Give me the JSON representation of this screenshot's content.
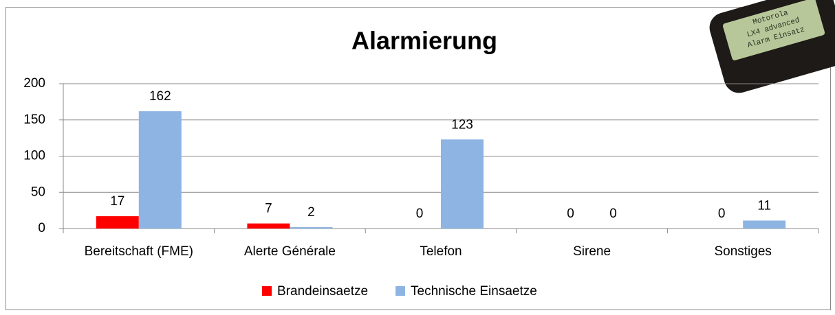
{
  "chart_data": {
    "type": "bar",
    "title": "Alarmierung",
    "categories": [
      "Bereitschaft (FME)",
      "Alerte Générale",
      "Telefon",
      "Sirene",
      "Sonstiges"
    ],
    "series": [
      {
        "name": "Brandeinsaetze",
        "color": "#ff0000",
        "values": [
          17,
          7,
          0,
          0,
          0
        ]
      },
      {
        "name": "Technische Einsaetze",
        "color": "#8db4e2",
        "values": [
          162,
          2,
          123,
          0,
          11
        ]
      }
    ],
    "ylim": [
      0,
      200
    ],
    "yticks": [
      0,
      50,
      100,
      150,
      200
    ],
    "grid": true,
    "legend": "bottom"
  },
  "pager_image": {
    "display_lines": [
      "Motorola",
      "LX4 advanced",
      "Alarm Einsatz"
    ]
  }
}
